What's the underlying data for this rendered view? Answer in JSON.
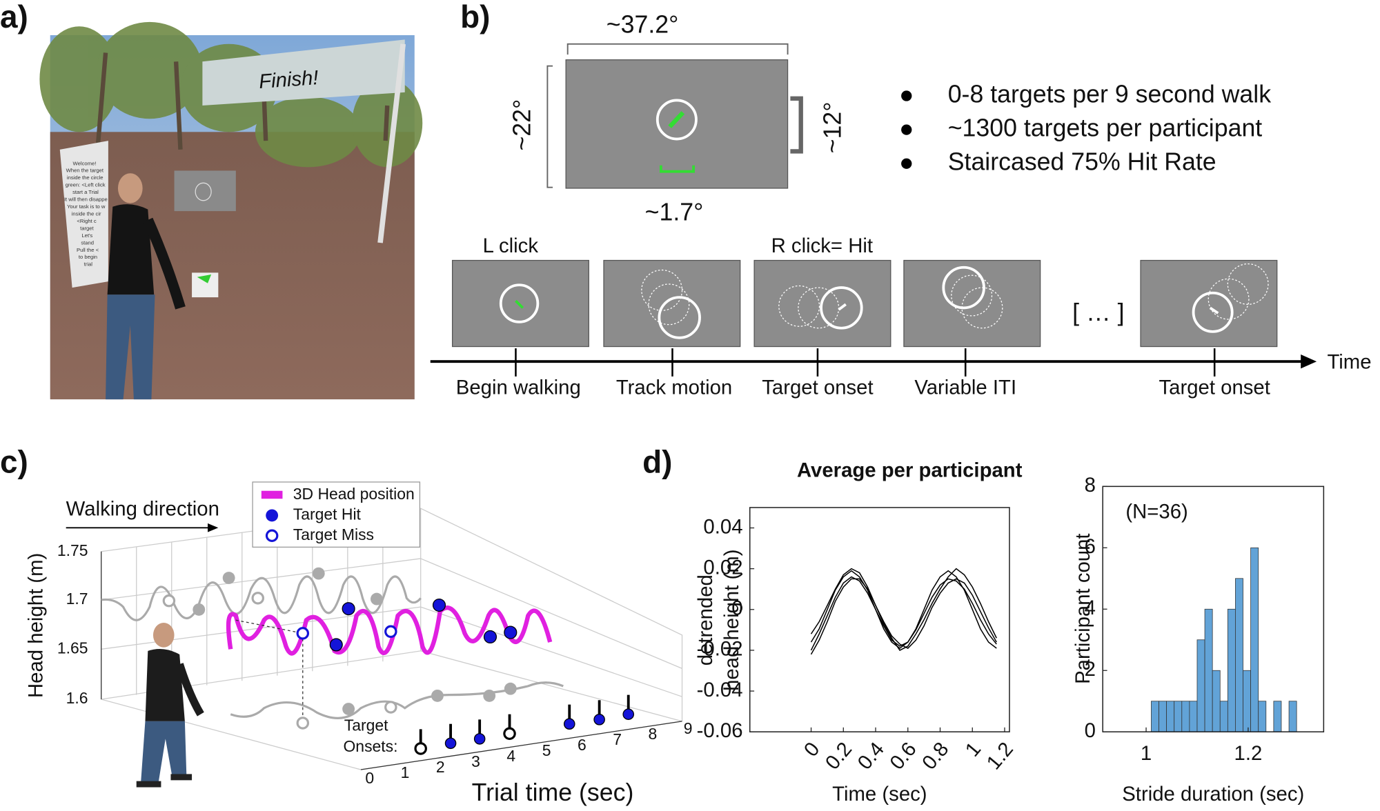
{
  "panels": {
    "a": {
      "label": "a)",
      "sign": "Finish!",
      "instructions": [
        "Welcome!",
        "When the target",
        "inside the circle",
        "green: <Left click",
        "start a Trial",
        "It will then disappe",
        "Your task is to w",
        "inside the cir",
        "<Right c",
        "target",
        "Let's",
        "stand",
        "Pull the <",
        "to begin",
        "trial"
      ]
    },
    "b": {
      "label": "b)",
      "width_angle": "~37.2°",
      "height_angle": "~22°",
      "circle_angle": "~12°",
      "target_angle": "~1.7°",
      "bullets": [
        "0-8 targets per 9 second walk",
        "~1300 targets per participant",
        "Staircased 75% Hit Rate"
      ],
      "frame_labels": [
        "L click",
        "R click= Hit"
      ],
      "ellipsis": "[ … ]",
      "time_label": "Time",
      "events": [
        "Begin walking",
        "Track motion",
        "Target onset",
        "Variable ITI",
        "Target onset"
      ]
    },
    "c": {
      "label": "c)",
      "walking_direction": "Walking direction",
      "y_label": "Head height (m)",
      "x_label": "Trial time (sec)",
      "yticks": [
        1.75,
        1.7,
        1.65,
        1.6
      ],
      "xticks": [
        0,
        1,
        2,
        3,
        4,
        5,
        6,
        7,
        8,
        9
      ],
      "legend": [
        "3D Head position",
        "Target Hit",
        "Target Miss"
      ],
      "onsets_label": [
        "Target",
        "Onsets:"
      ]
    },
    "d": {
      "label": "d)"
    }
  },
  "chart_data": [
    {
      "type": "line",
      "title": "Average per participant",
      "x_label": "Time (sec)",
      "y_label": [
        "detrended",
        "head height (m)"
      ],
      "x": [
        0,
        0.05,
        0.1,
        0.15,
        0.2,
        0.25,
        0.3,
        0.35,
        0.4,
        0.45,
        0.5,
        0.55,
        0.6,
        0.65,
        0.7,
        0.75,
        0.8,
        0.85,
        0.9,
        0.95,
        1,
        1.05,
        1.1,
        1.15
      ],
      "series": [
        {
          "color": "#000000",
          "values": [
            -0.016,
            -0.0095,
            0,
            0.0095,
            0.016,
            0.019,
            0.016,
            0.0095,
            0,
            -0.0095,
            -0.016,
            -0.019,
            -0.016,
            -0.0095,
            0,
            0.0095,
            0.016,
            0.019,
            0.016,
            0.0095,
            0,
            -0.0095,
            -0.016,
            -0.019
          ]
        },
        {
          "color": "#000000",
          "values": [
            -0.02,
            -0.012,
            -0.003,
            0.006,
            0.013,
            0.016,
            0.014,
            0.008,
            0,
            -0.008,
            -0.015,
            -0.018,
            -0.016,
            -0.01,
            -0.002,
            0.006,
            0.012,
            0.015,
            0.014,
            0.01,
            0.003,
            -0.005,
            -0.012,
            -0.017
          ]
        },
        {
          "color": "#000000",
          "values": [
            -0.012,
            -0.006,
            0.002,
            0.01,
            0.017,
            0.02,
            0.018,
            0.011,
            0.002,
            -0.007,
            -0.014,
            -0.02,
            -0.018,
            -0.012,
            -0.005,
            0.003,
            0.01,
            0.016,
            0.02,
            0.017,
            0.011,
            0.003,
            -0.006,
            -0.014
          ]
        },
        {
          "color": "#000000",
          "values": [
            -0.022,
            -0.015,
            -0.006,
            0.004,
            0.011,
            0.015,
            0.015,
            0.01,
            0.002,
            -0.006,
            -0.013,
            -0.017,
            -0.019,
            -0.015,
            -0.008,
            0.001,
            0.008,
            0.013,
            0.015,
            0.013,
            0.007,
            -0.001,
            -0.009,
            -0.016
          ]
        }
      ],
      "xlim": [
        -0.38,
        1.23
      ],
      "ylim": [
        -0.06,
        0.05
      ],
      "xticks": [
        0,
        0.2,
        0.4,
        0.6,
        0.8,
        1,
        1.2
      ],
      "yticks": [
        0.04,
        0.02,
        0,
        -0.02,
        -0.04,
        -0.06
      ]
    },
    {
      "type": "histogram",
      "annotation": "(N=36)",
      "x_label": "Stride duration (sec)",
      "y_label": "Participant count",
      "color": "#62a3d7",
      "bins": [
        1.01,
        1.025,
        1.04,
        1.055,
        1.07,
        1.085,
        1.1,
        1.115,
        1.13,
        1.145,
        1.16,
        1.175,
        1.19,
        1.205,
        1.22,
        1.235,
        1.25,
        1.265,
        1.28,
        1.295
      ],
      "values": [
        1,
        1,
        1,
        1,
        1,
        1,
        3,
        4,
        2,
        1,
        4,
        5,
        2,
        6,
        1,
        0,
        1,
        0,
        1
      ],
      "xlim": [
        0.915,
        1.348
      ],
      "ylim": [
        0,
        8
      ],
      "xticks": [
        1,
        1.2
      ],
      "yticks": [
        0,
        2,
        4,
        6,
        8
      ]
    }
  ]
}
